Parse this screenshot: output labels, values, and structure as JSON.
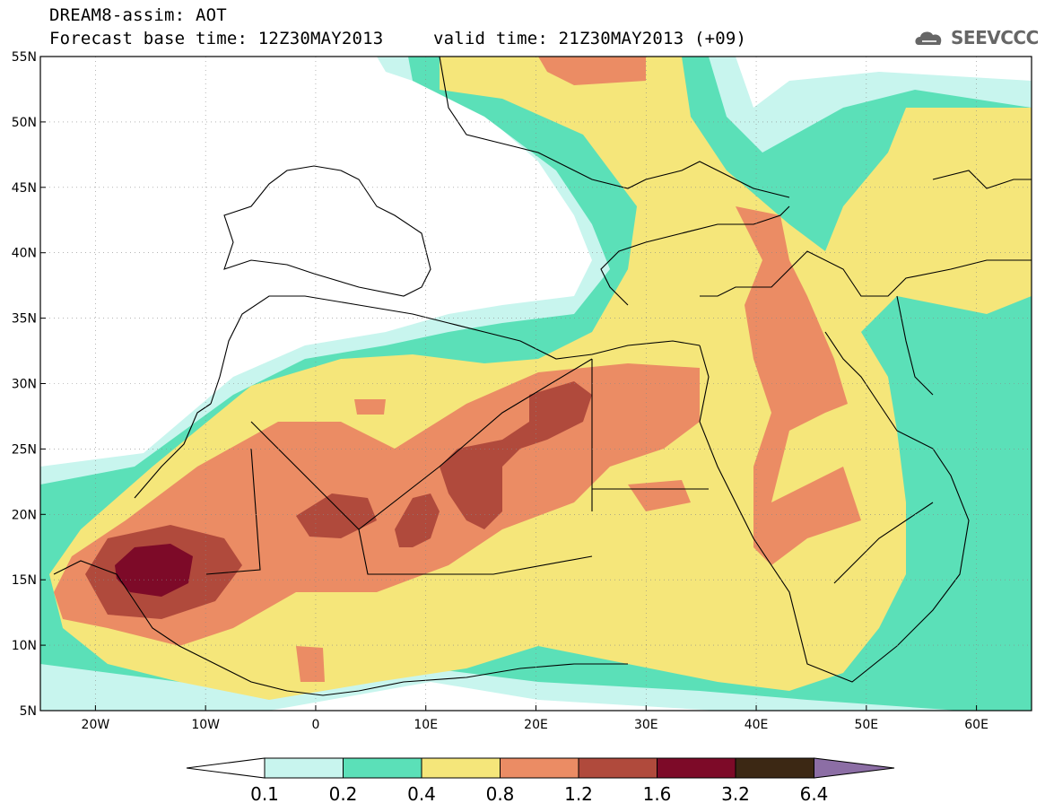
{
  "header": {
    "line1": "DREAM8-assim: AOT",
    "line2_base_label": "Forecast base time: 12Z30MAY2013",
    "line2_valid_label": "valid time: 21Z30MAY2013 (+09)"
  },
  "logo": {
    "text": "SEEVCCC",
    "icon": "cloud-logo-icon"
  },
  "map": {
    "lon_range": [
      -25,
      65
    ],
    "lat_range": [
      5,
      55
    ],
    "grid": "dotted",
    "lon_ticks": [
      {
        "value": -20,
        "label": "20W"
      },
      {
        "value": -10,
        "label": "10W"
      },
      {
        "value": 0,
        "label": "0"
      },
      {
        "value": 10,
        "label": "10E"
      },
      {
        "value": 20,
        "label": "20E"
      },
      {
        "value": 30,
        "label": "30E"
      },
      {
        "value": 40,
        "label": "40E"
      },
      {
        "value": 50,
        "label": "50E"
      },
      {
        "value": 60,
        "label": "60E"
      }
    ],
    "lat_ticks": [
      {
        "value": 55,
        "label": "55N"
      },
      {
        "value": 50,
        "label": "50N"
      },
      {
        "value": 45,
        "label": "45N"
      },
      {
        "value": 40,
        "label": "40N"
      },
      {
        "value": 35,
        "label": "35N"
      },
      {
        "value": 30,
        "label": "30N"
      },
      {
        "value": 25,
        "label": "25N"
      },
      {
        "value": 20,
        "label": "20N"
      },
      {
        "value": 15,
        "label": "15N"
      },
      {
        "value": 10,
        "label": "10N"
      },
      {
        "value": 5,
        "label": "5N"
      }
    ]
  },
  "colorbar": {
    "colors": [
      "#c8f5ee",
      "#5be0b8",
      "#f5e67a",
      "#eb8c64",
      "#b04a3c",
      "#7d0a28",
      "#3c2814"
    ],
    "under_color": "#ffffff",
    "over_color": "#8c6ea5",
    "labels": [
      "0.1",
      "0.2",
      "0.4",
      "0.8",
      "1.2",
      "1.6",
      "3.2",
      "6.4"
    ]
  }
}
